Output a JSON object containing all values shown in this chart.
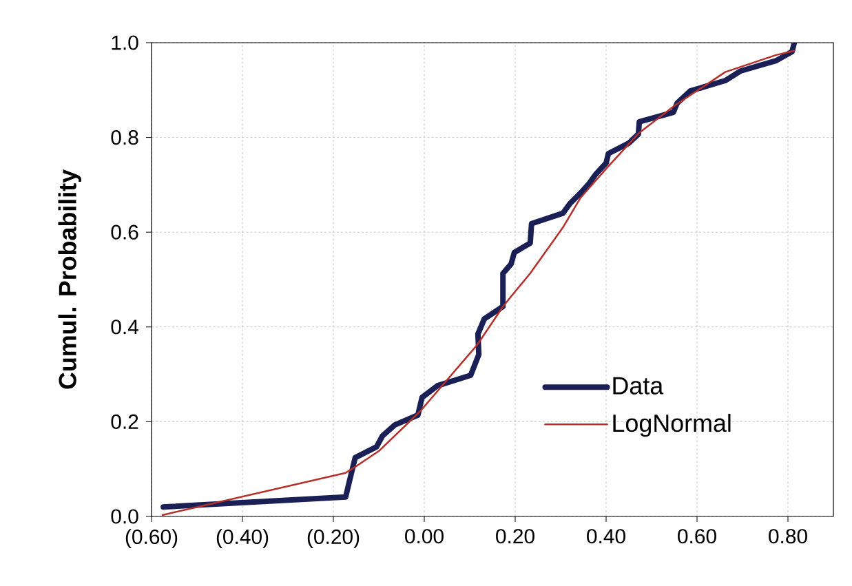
{
  "chart_data": {
    "type": "line",
    "ylabel": "Cumul. Probability",
    "xlim": [
      -0.6,
      0.9
    ],
    "ylim": [
      0,
      1.0
    ],
    "xticks": [
      {
        "value": -0.6,
        "label": "(0.60)"
      },
      {
        "value": -0.4,
        "label": "(0.40)"
      },
      {
        "value": -0.2,
        "label": "(0.20)"
      },
      {
        "value": 0,
        "label": "0.00"
      },
      {
        "value": 0.2,
        "label": "0.20"
      },
      {
        "value": 0.4,
        "label": "0.40"
      },
      {
        "value": 0.6,
        "label": "0.60"
      },
      {
        "value": 0.8,
        "label": "0.80"
      }
    ],
    "yticks": [
      {
        "value": 0,
        "label": "0.0"
      },
      {
        "value": 0.2,
        "label": "0.2"
      },
      {
        "value": 0.4,
        "label": "0.4"
      },
      {
        "value": 0.6,
        "label": "0.6"
      },
      {
        "value": 0.8,
        "label": "0.8"
      },
      {
        "value": 1.0,
        "label": "1.0"
      }
    ],
    "grid": true,
    "legend": "bottom right",
    "marker": "none",
    "line_style": "solid",
    "series": [
      {
        "name": "Data",
        "color": "#1a1f56",
        "x": [
          -0.574,
          -0.173,
          -0.165,
          -0.152,
          -0.105,
          -0.092,
          -0.065,
          -0.014,
          -0.005,
          0.029,
          0.102,
          0.12,
          0.118,
          0.132,
          0.173,
          0.173,
          0.191,
          0.198,
          0.233,
          0.236,
          0.305,
          0.321,
          0.344,
          0.362,
          0.377,
          0.4,
          0.405,
          0.45,
          0.471,
          0.473,
          0.548,
          0.556,
          0.585,
          0.662,
          0.695,
          0.774,
          0.809,
          0.814
        ],
        "values": [
          0.02,
          0.041,
          0.073,
          0.124,
          0.147,
          0.17,
          0.193,
          0.214,
          0.251,
          0.276,
          0.298,
          0.342,
          0.385,
          0.417,
          0.443,
          0.513,
          0.533,
          0.557,
          0.577,
          0.618,
          0.64,
          0.661,
          0.683,
          0.702,
          0.722,
          0.746,
          0.766,
          0.788,
          0.807,
          0.833,
          0.853,
          0.872,
          0.898,
          0.92,
          0.94,
          0.962,
          0.981,
          1.0
        ]
      },
      {
        "name": "LogNormal",
        "color": "#b5302a",
        "x": [
          -0.576,
          -0.173,
          -0.153,
          -0.1,
          -0.009,
          0.102,
          0.117,
          0.173,
          0.2,
          0.233,
          0.305,
          0.344,
          0.403,
          0.473,
          0.552,
          0.662,
          0.774,
          0.814
        ],
        "values": [
          0.003,
          0.092,
          0.104,
          0.138,
          0.222,
          0.346,
          0.363,
          0.443,
          0.475,
          0.513,
          0.61,
          0.673,
          0.737,
          0.81,
          0.868,
          0.938,
          0.974,
          0.983
        ]
      }
    ]
  }
}
